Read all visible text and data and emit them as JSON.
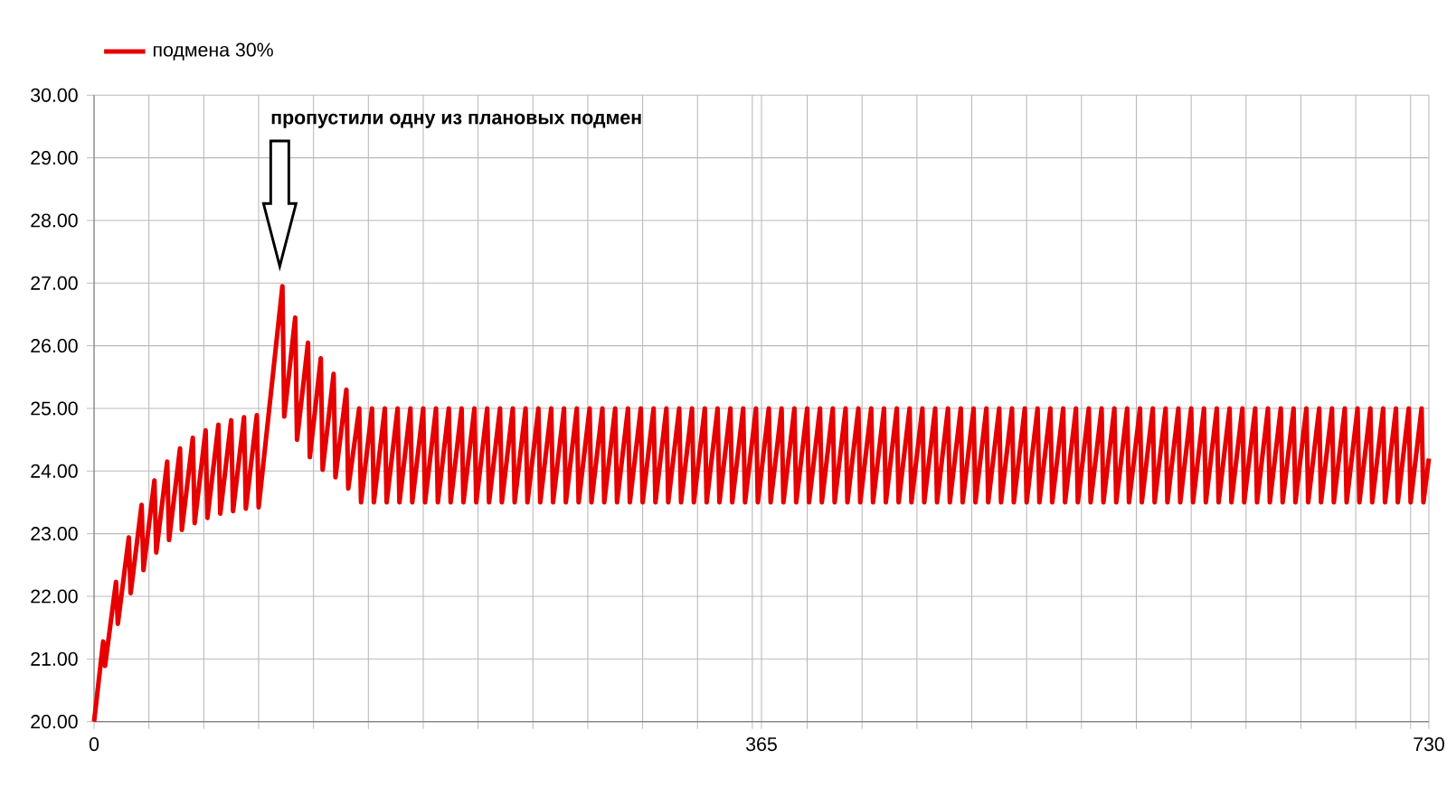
{
  "chart_data": {
    "type": "line",
    "annotations": [
      "пропустили одну из плановых подмен"
    ],
    "x": [
      0,
      5,
      6,
      12,
      13,
      19,
      20,
      26,
      27,
      33,
      34,
      40,
      41,
      47,
      48,
      54,
      55,
      61,
      62,
      68,
      69,
      75,
      76,
      82,
      83,
      89,
      90,
      103,
      104,
      110,
      111,
      117,
      118,
      124,
      125,
      131,
      132,
      138,
      139,
      145,
      146,
      152,
      153,
      159,
      160,
      166,
      167,
      173,
      174,
      180,
      181,
      187,
      188,
      194,
      195,
      201,
      202,
      208,
      209,
      215,
      216,
      222,
      223,
      229,
      230,
      236,
      237,
      243,
      244,
      250,
      251,
      257,
      258,
      264,
      265,
      271,
      272,
      278,
      279,
      285,
      286,
      292,
      293,
      299,
      300,
      306,
      307,
      313,
      314,
      320,
      321,
      327,
      328,
      334,
      335,
      341,
      342,
      348,
      349,
      355,
      356,
      362,
      363,
      369,
      370,
      376,
      377,
      383,
      384,
      390,
      391,
      397,
      398,
      404,
      405,
      411,
      412,
      418,
      419,
      425,
      426,
      432,
      433,
      439,
      440,
      446,
      447,
      453,
      454,
      460,
      461,
      467,
      468,
      474,
      475,
      481,
      482,
      488,
      489,
      495,
      496,
      502,
      503,
      509,
      510,
      516,
      517,
      523,
      524,
      530,
      531,
      537,
      538,
      544,
      545,
      551,
      552,
      558,
      559,
      565,
      566,
      572,
      573,
      579,
      580,
      586,
      587,
      593,
      594,
      600,
      601,
      607,
      608,
      614,
      615,
      621,
      622,
      628,
      629,
      635,
      636,
      642,
      643,
      649,
      650,
      656,
      657,
      663,
      664,
      670,
      671,
      677,
      678,
      684,
      685,
      691,
      692,
      698,
      699,
      705,
      706,
      712,
      713,
      719,
      720,
      726,
      727,
      730
    ],
    "series": [
      {
        "name": "подмена 30%",
        "color": "#e60000",
        "values": [
          20,
          21.28,
          20.89,
          22.23,
          21.56,
          22.94,
          22.05,
          23.46,
          22.42,
          23.85,
          22.7,
          24.15,
          22.9,
          24.36,
          23.06,
          24.53,
          23.17,
          24.65,
          23.25,
          24.74,
          23.32,
          24.81,
          23.36,
          24.86,
          23.4,
          24.89,
          23.42,
          26.95,
          24.87,
          26.45,
          24.5,
          26.05,
          24.22,
          25.8,
          24.02,
          25.55,
          23.9,
          25.3,
          23.72,
          25,
          23.5,
          25,
          23.5,
          25,
          23.5,
          25,
          23.5,
          25,
          23.5,
          25,
          23.5,
          25,
          23.5,
          25,
          23.5,
          25,
          23.5,
          25,
          23.5,
          25,
          23.5,
          25,
          23.5,
          25,
          23.5,
          25,
          23.5,
          25,
          23.5,
          25,
          23.5,
          25,
          23.5,
          25,
          23.5,
          25,
          23.5,
          25,
          23.5,
          25,
          23.5,
          25,
          23.5,
          25,
          23.5,
          25,
          23.5,
          25,
          23.5,
          25,
          23.5,
          25,
          23.5,
          25,
          23.5,
          25,
          23.5,
          25,
          23.5,
          25,
          23.5,
          25,
          23.5,
          25,
          23.5,
          25,
          23.5,
          25,
          23.5,
          25,
          23.5,
          25,
          23.5,
          25,
          23.5,
          25,
          23.5,
          25,
          23.5,
          25,
          23.5,
          25,
          23.5,
          25,
          23.5,
          25,
          23.5,
          25,
          23.5,
          25,
          23.5,
          25,
          23.5,
          25,
          23.5,
          25,
          23.5,
          25,
          23.5,
          25,
          23.5,
          25,
          23.5,
          25,
          23.5,
          25,
          23.5,
          25,
          23.5,
          25,
          23.5,
          25,
          23.5,
          25,
          23.5,
          25,
          23.5,
          25,
          23.5,
          25,
          23.5,
          25,
          23.5,
          25,
          23.5,
          25,
          23.5,
          25,
          23.5,
          25,
          23.5,
          25,
          23.5,
          25,
          23.5,
          25,
          23.5,
          25,
          23.5,
          25,
          23.5,
          25,
          23.5,
          25,
          23.5,
          25,
          23.5,
          25,
          23.5,
          25,
          23.5,
          25,
          23.5,
          25,
          23.5,
          25,
          23.5,
          25,
          23.5,
          25,
          23.5,
          25,
          23.5,
          25,
          23.5,
          25,
          23.5,
          24.2
        ]
      }
    ],
    "xlim": [
      0,
      730
    ],
    "xticks": [
      0,
      {
        "value": 30,
        "label": null
      },
      {
        "value": 60,
        "label": null
      },
      {
        "value": 90,
        "label": null
      },
      {
        "value": 120,
        "label": null
      },
      {
        "value": 150,
        "label": null
      },
      {
        "value": 180,
        "label": null
      },
      {
        "value": 210,
        "label": null
      },
      {
        "value": 240,
        "label": null
      },
      {
        "value": 270,
        "label": null
      },
      {
        "value": 300,
        "label": null
      },
      {
        "value": 330,
        "label": null
      },
      {
        "value": 360,
        "label": null
      },
      365,
      {
        "value": 390,
        "label": null
      },
      {
        "value": 420,
        "label": null
      },
      {
        "value": 450,
        "label": null
      },
      {
        "value": 480,
        "label": null
      },
      {
        "value": 510,
        "label": null
      },
      {
        "value": 540,
        "label": null
      },
      {
        "value": 570,
        "label": null
      },
      {
        "value": 600,
        "label": null
      },
      {
        "value": 630,
        "label": null
      },
      {
        "value": 660,
        "label": null
      },
      {
        "value": 690,
        "label": null
      },
      {
        "value": 720,
        "label": null
      },
      730
    ],
    "ylim": [
      20,
      30
    ],
    "yticks": [
      {
        "value": 20,
        "label": "20.00"
      },
      {
        "value": 21,
        "label": "21.00"
      },
      {
        "value": 22,
        "label": "22.00"
      },
      {
        "value": 23,
        "label": "23.00"
      },
      {
        "value": 24,
        "label": "24.00"
      },
      {
        "value": 25,
        "label": "25.00"
      },
      {
        "value": 26,
        "label": "26.00"
      },
      {
        "value": 27,
        "label": "27.00"
      },
      {
        "value": 28,
        "label": "28.00"
      },
      {
        "value": 29,
        "label": "29.00"
      },
      {
        "value": 30,
        "label": "30.00"
      }
    ],
    "grid": true,
    "legend": "top left",
    "marker": "none",
    "line_style": "solid"
  }
}
